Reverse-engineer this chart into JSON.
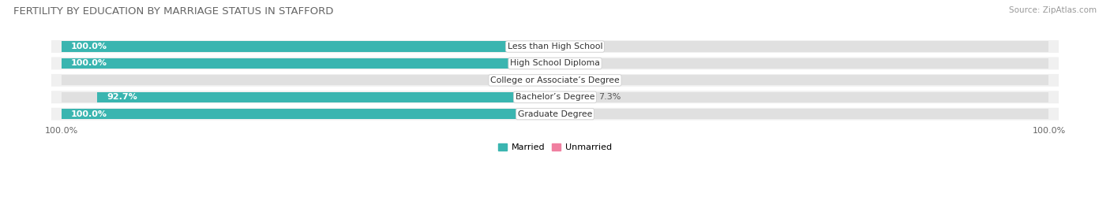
{
  "title": "FERTILITY BY EDUCATION BY MARRIAGE STATUS IN STAFFORD",
  "source": "Source: ZipAtlas.com",
  "categories": [
    "Less than High School",
    "High School Diploma",
    "College or Associate’s Degree",
    "Bachelor’s Degree",
    "Graduate Degree"
  ],
  "married": [
    100.0,
    100.0,
    0.0,
    92.7,
    100.0
  ],
  "unmarried": [
    0.0,
    0.0,
    0.0,
    7.3,
    0.0
  ],
  "married_color": "#3ab5b0",
  "unmarried_color": "#f07fa0",
  "unmarried_color_alt": "#f4afc0",
  "bar_bg_color": "#e0e0e0",
  "row_bg_color": "#f0f0f0",
  "title_fontsize": 9.5,
  "source_fontsize": 7.5,
  "bar_label_fontsize": 8,
  "category_label_fontsize": 7.8,
  "legend_fontsize": 8,
  "axis_label_fontsize": 8,
  "x_left_label": "100.0%",
  "x_right_label": "100.0%"
}
